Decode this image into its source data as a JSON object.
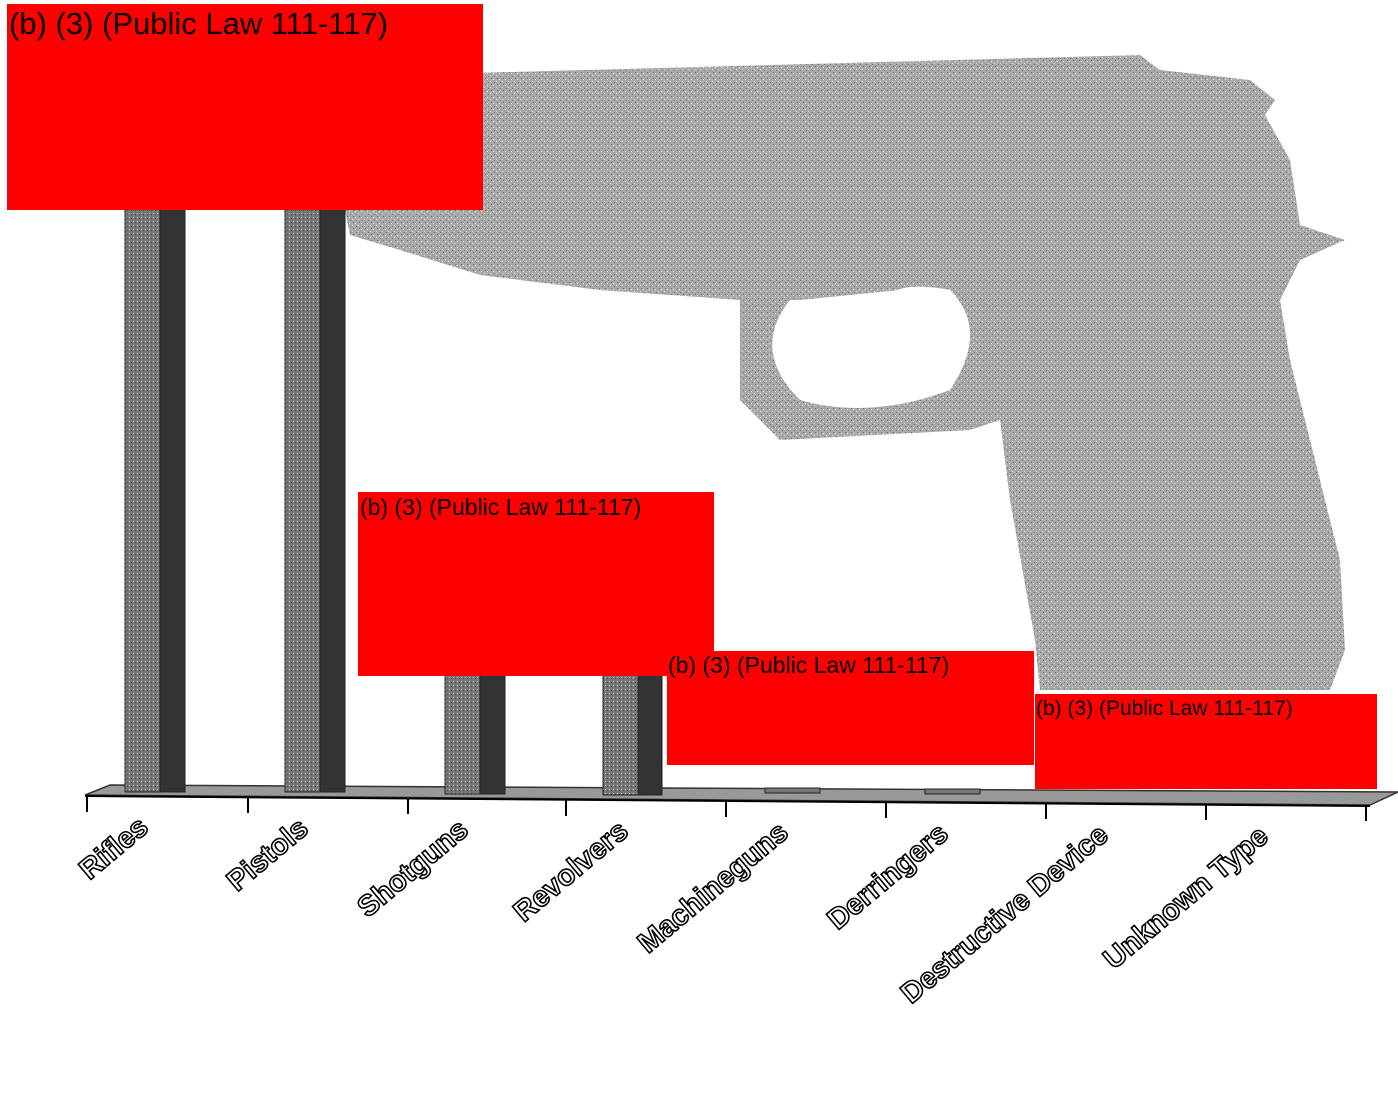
{
  "categories": [
    "Rifles",
    "Pistols",
    "Shotguns",
    "Revolvers",
    "Machineguns",
    "Derringers",
    "Destructive Device",
    "Unknown Type"
  ],
  "redactions": [
    "(b) (3) (Public Law 111-117)",
    "(b) (3) (Public Law 111-117)",
    "(b) (3) (Public Law 111-117)",
    "(b) (3) (Public Law 111-117)"
  ]
}
